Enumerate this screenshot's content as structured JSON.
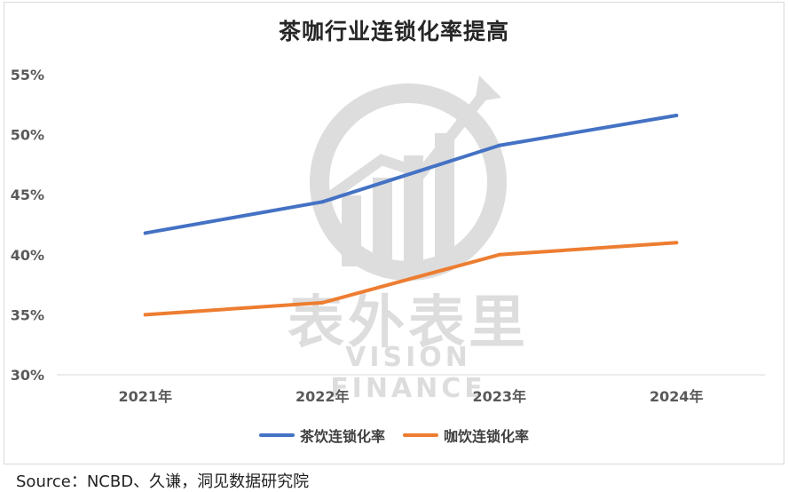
{
  "chart_data": {
    "type": "line",
    "title": "茶咖行业连锁化率提高",
    "categories": [
      "2021年",
      "2022年",
      "2023年",
      "2024年"
    ],
    "series": [
      {
        "name": "茶饮连锁化率",
        "values": [
          41.8,
          44.4,
          49.1,
          51.6
        ],
        "color": "#4472c4"
      },
      {
        "name": "咖饮连锁化率",
        "values": [
          35.0,
          36.0,
          40.0,
          41.0
        ],
        "color": "#ed7d31"
      }
    ],
    "ylim": [
      30,
      55
    ],
    "yticks": [
      "30%",
      "35%",
      "40%",
      "45%",
      "50%",
      "55%"
    ],
    "ytick_values": [
      30,
      35,
      40,
      45,
      50,
      55
    ],
    "grid": false,
    "legend_position": "bottom"
  },
  "watermark": {
    "cn": "表外表里",
    "en": "VISION FINANCE"
  },
  "source": "Source：NCBD、久谦，洞见数据研究院"
}
